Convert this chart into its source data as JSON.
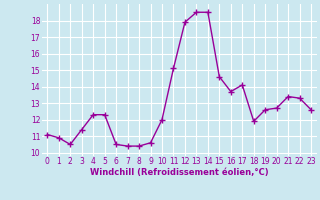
{
  "x": [
    0,
    1,
    2,
    3,
    4,
    5,
    6,
    7,
    8,
    9,
    10,
    11,
    12,
    13,
    14,
    15,
    16,
    17,
    18,
    19,
    20,
    21,
    22,
    23
  ],
  "y": [
    11.1,
    10.9,
    10.5,
    11.4,
    12.3,
    12.3,
    10.5,
    10.4,
    10.4,
    10.6,
    12.0,
    15.1,
    17.9,
    18.5,
    18.5,
    14.6,
    13.7,
    14.1,
    11.9,
    12.6,
    12.7,
    13.4,
    13.3,
    12.6
  ],
  "line_color": "#990099",
  "marker": "+",
  "marker_size": 4,
  "marker_lw": 1.0,
  "line_width": 1.0,
  "bg_color": "#cce8f0",
  "grid_color": "#ffffff",
  "xlabel": "Windchill (Refroidissement éolien,°C)",
  "xlabel_color": "#990099",
  "tick_color": "#990099",
  "ylim": [
    9.8,
    19.0
  ],
  "xlim": [
    -0.5,
    23.5
  ],
  "yticks": [
    10,
    11,
    12,
    13,
    14,
    15,
    16,
    17,
    18
  ],
  "xticks": [
    0,
    1,
    2,
    3,
    4,
    5,
    6,
    7,
    8,
    9,
    10,
    11,
    12,
    13,
    14,
    15,
    16,
    17,
    18,
    19,
    20,
    21,
    22,
    23
  ],
  "tick_fontsize": 5.5,
  "xlabel_fontsize": 6.0,
  "xlabel_fontweight": "bold"
}
